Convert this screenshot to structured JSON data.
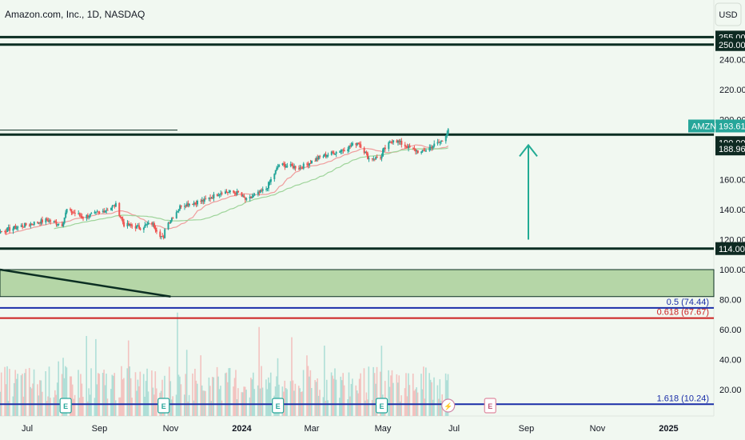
{
  "header": {
    "title": "Amazon.com, Inc., 1D, NASDAQ",
    "currency_button": "USD"
  },
  "colors": {
    "background": "#f1f8f1",
    "up": "#26a69a",
    "down": "#ef5350",
    "dark_line": "#0b2e22",
    "zone_fill": "#b5d6a7",
    "arrow": "#22ab94",
    "fib_blue": "#1a2ea8",
    "fib_red": "#cc1f1f",
    "ma_red": "#f09c9c",
    "ma_green": "#9ed49a",
    "tag_dark": "#0e2a22",
    "tag_green": "#26a69a"
  },
  "chart_data": {
    "type": "candlestick",
    "title": "Amazon.com, Inc., 1D, NASDAQ",
    "currency": "USD",
    "x_axis_ticks": [
      "Jul",
      "Sep",
      "Nov",
      "2024",
      "Mar",
      "May",
      "Jul",
      "Sep",
      "Nov",
      "2025"
    ],
    "x_axis_bold_ticks": [
      "2024",
      "2025"
    ],
    "y_axis_ticks": [
      240,
      220,
      200,
      180,
      160,
      140,
      120,
      100,
      80,
      60,
      40,
      20
    ],
    "y_axis_visible_labels": [
      "240.00",
      "220.00",
      "200.00",
      "160.00",
      "140.00",
      "120.00",
      "100.00",
      "80.00",
      "60.00",
      "40.00",
      "20.00"
    ],
    "ylim": [
      0,
      270
    ],
    "price_tags": [
      {
        "label": "255.00",
        "value": 255,
        "style": "dark"
      },
      {
        "label": "250.00",
        "value": 250,
        "style": "dark"
      },
      {
        "label": "193.61",
        "value": 193.61,
        "style": "green",
        "symbol": "AMZN"
      },
      {
        "label": "190.00",
        "value": 190,
        "style": "dark"
      },
      {
        "label": "188.96",
        "value": 188.96,
        "style": "dark"
      },
      {
        "label": "114.00",
        "value": 114,
        "style": "dark"
      }
    ],
    "horizontal_levels": [
      255,
      250,
      190,
      114
    ],
    "zone": {
      "from": 82,
      "to": 100
    },
    "fib_levels": [
      {
        "label": "0.5 (74.44)",
        "value": 74.44,
        "color": "blue"
      },
      {
        "label": "0.618 (67.67)",
        "value": 67.67,
        "color": "red"
      },
      {
        "label": "1.618 (10.24)",
        "value": 10.24,
        "color": "blue"
      }
    ],
    "trendline": {
      "from": {
        "x": "2023-05-15",
        "y": 100
      },
      "to": {
        "x": "2023-11-01",
        "y": 82
      }
    },
    "arrow": {
      "from": 120,
      "to": 183,
      "direction": "up"
    },
    "events": [
      {
        "x": "2023-08-03",
        "letter": "E",
        "kind": "earnings"
      },
      {
        "x": "2023-10-26",
        "letter": "E",
        "kind": "earnings"
      },
      {
        "x": "2024-02-01",
        "letter": "E",
        "kind": "earnings"
      },
      {
        "x": "2024-04-30",
        "letter": "E",
        "kind": "earnings"
      },
      {
        "x": "2024-06-26",
        "letter": "⚡",
        "kind": "split"
      },
      {
        "x": "2024-08-01",
        "letter": "E",
        "kind": "upcoming-earnings"
      }
    ],
    "price_path": [
      {
        "date": "2023-05-15",
        "close": 122
      },
      {
        "date": "2023-06-01",
        "close": 124
      },
      {
        "date": "2023-06-16",
        "close": 127
      },
      {
        "date": "2023-07-01",
        "close": 130
      },
      {
        "date": "2023-07-18",
        "close": 133
      },
      {
        "date": "2023-07-31",
        "close": 130
      },
      {
        "date": "2023-08-04",
        "close": 140
      },
      {
        "date": "2023-08-18",
        "close": 135
      },
      {
        "date": "2023-09-01",
        "close": 138
      },
      {
        "date": "2023-09-15",
        "close": 143
      },
      {
        "date": "2023-09-22",
        "close": 130
      },
      {
        "date": "2023-10-06",
        "close": 128
      },
      {
        "date": "2023-10-16",
        "close": 131
      },
      {
        "date": "2023-10-26",
        "close": 120
      },
      {
        "date": "2023-10-27",
        "close": 128
      },
      {
        "date": "2023-11-10",
        "close": 143
      },
      {
        "date": "2023-11-30",
        "close": 146
      },
      {
        "date": "2023-12-15",
        "close": 152
      },
      {
        "date": "2023-12-29",
        "close": 151
      },
      {
        "date": "2024-01-05",
        "close": 146
      },
      {
        "date": "2024-01-22",
        "close": 154
      },
      {
        "date": "2024-02-02",
        "close": 170
      },
      {
        "date": "2024-02-20",
        "close": 168
      },
      {
        "date": "2024-03-08",
        "close": 175
      },
      {
        "date": "2024-03-28",
        "close": 180
      },
      {
        "date": "2024-04-10",
        "close": 185
      },
      {
        "date": "2024-04-19",
        "close": 174
      },
      {
        "date": "2024-04-30",
        "close": 175
      },
      {
        "date": "2024-05-01",
        "close": 179
      },
      {
        "date": "2024-05-10",
        "close": 187
      },
      {
        "date": "2024-05-24",
        "close": 181
      },
      {
        "date": "2024-06-03",
        "close": 178
      },
      {
        "date": "2024-06-14",
        "close": 183
      },
      {
        "date": "2024-06-21",
        "close": 186
      },
      {
        "date": "2024-06-26",
        "close": 193.61
      }
    ]
  }
}
